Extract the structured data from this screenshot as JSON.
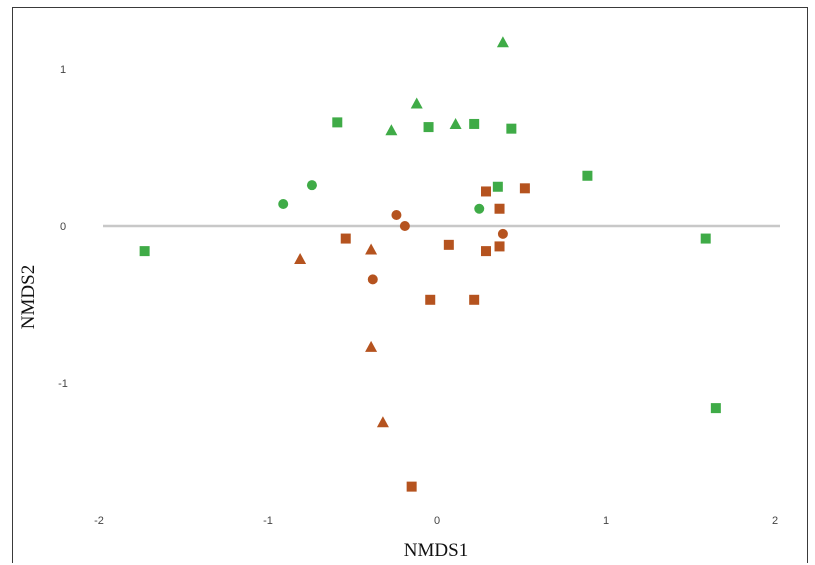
{
  "chart_data": {
    "type": "scatter",
    "title": "",
    "xlabel": "NMDS1",
    "ylabel": "NMDS2",
    "xlim": [
      -2.05,
      2.05
    ],
    "ylim": [
      -1.85,
      1.25
    ],
    "xticks": [
      "-2",
      "-1",
      "0",
      "1",
      "2"
    ],
    "yticks": [
      "1",
      "0",
      "-1"
    ],
    "reference_line_y": 0,
    "colors": {
      "green": "#3fab47",
      "orange": "#b5531f",
      "zero_line": "#c8c8c8"
    },
    "series": [
      {
        "color": "green",
        "marker": "triangle",
        "points": [
          [
            0.39,
            1.17
          ],
          [
            -0.12,
            0.78
          ],
          [
            0.11,
            0.65
          ],
          [
            -0.27,
            0.61
          ]
        ]
      },
      {
        "color": "green",
        "marker": "square",
        "points": [
          [
            -1.73,
            -0.16
          ],
          [
            -0.59,
            0.66
          ],
          [
            -0.05,
            0.63
          ],
          [
            0.22,
            0.65
          ],
          [
            0.44,
            0.62
          ],
          [
            0.36,
            0.25
          ],
          [
            0.89,
            0.32
          ],
          [
            1.59,
            -0.08
          ],
          [
            1.65,
            -1.16
          ]
        ]
      },
      {
        "color": "green",
        "marker": "circle",
        "points": [
          [
            -0.91,
            0.14
          ],
          [
            -0.74,
            0.26
          ],
          [
            0.25,
            0.11
          ]
        ]
      },
      {
        "color": "orange",
        "marker": "triangle",
        "points": [
          [
            -0.81,
            -0.21
          ],
          [
            -0.39,
            -0.15
          ],
          [
            -0.39,
            -0.77
          ],
          [
            -0.32,
            -1.25
          ]
        ]
      },
      {
        "color": "orange",
        "marker": "square",
        "points": [
          [
            -0.54,
            -0.08
          ],
          [
            0.29,
            0.22
          ],
          [
            0.52,
            0.24
          ],
          [
            0.37,
            0.11
          ],
          [
            0.07,
            -0.12
          ],
          [
            0.29,
            -0.16
          ],
          [
            0.37,
            -0.13
          ],
          [
            -0.04,
            -0.47
          ],
          [
            0.22,
            -0.47
          ],
          [
            -0.15,
            -1.66
          ]
        ]
      },
      {
        "color": "orange",
        "marker": "circle",
        "points": [
          [
            -0.24,
            0.07
          ],
          [
            -0.19,
            0.0
          ],
          [
            0.39,
            -0.05
          ],
          [
            -0.38,
            -0.34
          ]
        ]
      }
    ]
  }
}
